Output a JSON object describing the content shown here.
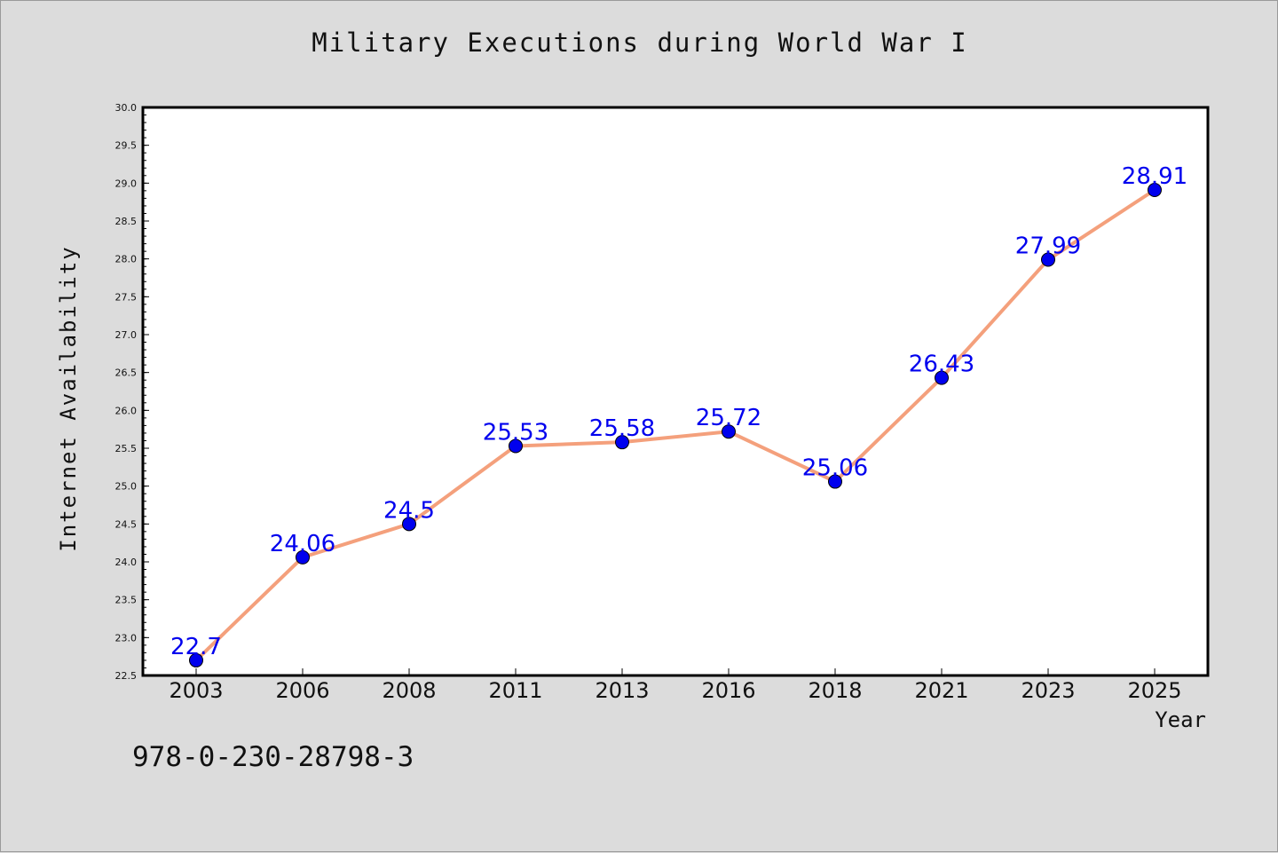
{
  "chart_data": {
    "type": "line",
    "title": "Military Executions during World War I",
    "xlabel": "Year",
    "ylabel": "Internet Availability",
    "categories": [
      "2003",
      "2006",
      "2008",
      "2011",
      "2013",
      "2016",
      "2018",
      "2021",
      "2023",
      "2025"
    ],
    "series": [
      {
        "values": [
          22.7,
          24.06,
          24.5,
          25.53,
          25.58,
          25.72,
          25.06,
          26.43,
          27.99,
          28.91
        ],
        "data_labels": [
          "22.7",
          "24.06",
          "24.5",
          "25.53",
          "25.58",
          "25.72",
          "25.06",
          "26.43",
          "27.99",
          "28.91"
        ],
        "line_color": "#f4a07c",
        "marker_color": "#0000ee",
        "label_color": "#0000ee"
      }
    ],
    "ylim": [
      22.5,
      30.0
    ],
    "yticks": [
      "22.5",
      "23.0",
      "23.5",
      "24.0",
      "24.5",
      "25.0",
      "25.5",
      "26.0",
      "26.5",
      "27.0",
      "27.5",
      "28.0",
      "28.5",
      "29.0",
      "29.5",
      "30.0"
    ],
    "grid": false,
    "legend": "none",
    "plot_background": "#ffffff",
    "page_background": "#dcdcdc"
  },
  "annotation": {
    "isbn": "978-0-230-28798-3"
  }
}
